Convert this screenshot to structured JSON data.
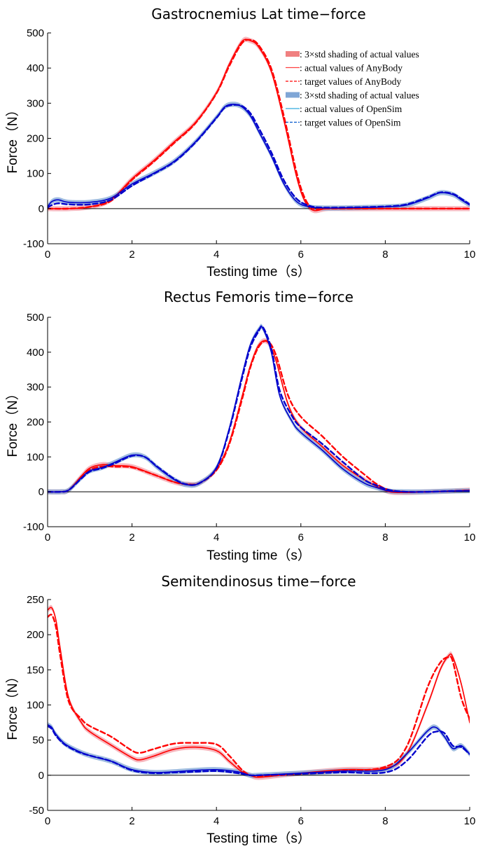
{
  "colors": {
    "anybody": "#ff0000",
    "anybody_shade": "#f4a0aa",
    "opensim": "#0000cc",
    "opensim_shade": "#7fa6d6",
    "zero_line": "#000000"
  },
  "legend": [
    {
      "label": ": 3×std shading of actual values",
      "style": "shade",
      "color": "#f08080"
    },
    {
      "label": ": actual values of AnyBody",
      "style": "solid",
      "color": "#ff4040"
    },
    {
      "label": ": target values of AnyBody",
      "style": "dashed",
      "color": "#ff0000"
    },
    {
      "label": ": 3×std shading of actual values",
      "style": "shade",
      "color": "#7fa6d6"
    },
    {
      "label": ": actual values of OpenSim",
      "style": "solid",
      "color": "#33aadd"
    },
    {
      "label": ": target values of OpenSim",
      "style": "dashed",
      "color": "#0055cc"
    }
  ],
  "chart_data": [
    {
      "type": "line",
      "title": "Gastrocnemius Lat time−force",
      "xlabel": "Testing time（s）",
      "ylabel": "Force（N）",
      "xlim": [
        0,
        10
      ],
      "ylim": [
        -100,
        500
      ],
      "xticks": [
        0,
        2,
        4,
        6,
        8,
        10
      ],
      "yticks": [
        -100,
        0,
        100,
        200,
        300,
        400,
        500
      ],
      "legend_position": "top-right",
      "grid": false,
      "series": [
        {
          "name": "actual values of AnyBody",
          "style": "solid",
          "system": "anybody",
          "x": [
            0,
            0.5,
            1,
            1.5,
            2,
            2.5,
            3,
            3.5,
            4,
            4.3,
            4.6,
            4.8,
            5,
            5.3,
            5.6,
            5.9,
            6.1,
            6.3,
            6.6,
            7,
            8,
            9,
            10
          ],
          "y": [
            0,
            0,
            5,
            25,
            85,
            135,
            190,
            245,
            330,
            410,
            475,
            478,
            460,
            390,
            250,
            90,
            20,
            -5,
            0,
            0,
            0,
            0,
            0
          ]
        },
        {
          "name": "target values of AnyBody",
          "style": "dashed",
          "system": "anybody",
          "x": [
            0,
            0.5,
            1,
            1.5,
            2,
            2.5,
            3,
            3.5,
            4,
            4.3,
            4.6,
            4.8,
            5,
            5.3,
            5.6,
            5.9,
            6.1,
            6.3,
            6.6,
            7,
            8,
            9,
            10
          ],
          "y": [
            0,
            0,
            5,
            22,
            82,
            132,
            187,
            243,
            328,
            405,
            470,
            480,
            465,
            398,
            262,
            102,
            28,
            0,
            0,
            0,
            0,
            0,
            0
          ]
        },
        {
          "name": "actual values of OpenSim",
          "style": "solid",
          "system": "opensim",
          "x": [
            0,
            0.1,
            0.25,
            0.5,
            1,
            1.5,
            2,
            2.5,
            3,
            3.5,
            4,
            4.2,
            4.4,
            4.6,
            4.8,
            5,
            5.3,
            5.6,
            5.9,
            6.2,
            6.5,
            7,
            8,
            8.5,
            9,
            9.3,
            9.6,
            9.8,
            10
          ],
          "y": [
            5,
            20,
            25,
            18,
            18,
            30,
            70,
            100,
            135,
            190,
            260,
            290,
            297,
            290,
            265,
            220,
            150,
            70,
            20,
            5,
            2,
            2,
            5,
            10,
            30,
            45,
            40,
            25,
            10
          ]
        },
        {
          "name": "target values of OpenSim",
          "style": "dashed",
          "system": "opensim",
          "x": [
            0,
            0.1,
            0.25,
            0.5,
            1,
            1.5,
            2,
            2.5,
            3,
            3.5,
            4,
            4.2,
            4.4,
            4.6,
            4.8,
            5,
            5.3,
            5.6,
            5.9,
            6.2,
            6.5,
            7,
            8,
            8.5,
            9,
            9.3,
            9.6,
            9.8,
            10
          ],
          "y": [
            3,
            10,
            15,
            12,
            12,
            25,
            65,
            98,
            133,
            188,
            258,
            288,
            295,
            292,
            272,
            230,
            160,
            80,
            28,
            8,
            3,
            3,
            6,
            12,
            32,
            46,
            42,
            28,
            12
          ]
        }
      ]
    },
    {
      "type": "line",
      "title": "Rectus Femoris time−force",
      "xlabel": "Testing time（s）",
      "ylabel": "Force（N）",
      "xlim": [
        0,
        10
      ],
      "ylim": [
        -100,
        500
      ],
      "xticks": [
        0,
        2,
        4,
        6,
        8,
        10
      ],
      "yticks": [
        -100,
        0,
        100,
        200,
        300,
        400,
        500
      ],
      "grid": false,
      "series": [
        {
          "name": "actual values of AnyBody",
          "style": "solid",
          "system": "anybody",
          "x": [
            0,
            0.3,
            0.5,
            0.8,
            1,
            1.3,
            1.6,
            2,
            2.5,
            3,
            3.3,
            3.6,
            4,
            4.3,
            4.6,
            4.8,
            5,
            5.2,
            5.4,
            5.7,
            6,
            6.5,
            7,
            7.5,
            7.8,
            8.1,
            8.5,
            9,
            9.5,
            10
          ],
          "y": [
            0,
            0,
            5,
            45,
            68,
            78,
            75,
            72,
            50,
            28,
            22,
            25,
            65,
            140,
            270,
            360,
            420,
            430,
            380,
            250,
            185,
            130,
            75,
            35,
            15,
            0,
            -2,
            0,
            2,
            5
          ]
        },
        {
          "name": "target values of AnyBody",
          "style": "dashed",
          "system": "anybody",
          "x": [
            0,
            0.3,
            0.5,
            0.8,
            1,
            1.3,
            1.6,
            2,
            2.5,
            3,
            3.3,
            3.6,
            4,
            4.3,
            4.6,
            4.8,
            5,
            5.2,
            5.4,
            5.7,
            6,
            6.5,
            7,
            7.5,
            7.8,
            8.1,
            8.5,
            9,
            9.5,
            10
          ],
          "y": [
            0,
            0,
            5,
            40,
            63,
            73,
            72,
            70,
            50,
            28,
            22,
            25,
            62,
            135,
            262,
            355,
            415,
            432,
            395,
            275,
            215,
            160,
            100,
            50,
            22,
            5,
            0,
            0,
            2,
            4
          ]
        },
        {
          "name": "actual values of OpenSim",
          "style": "solid",
          "system": "opensim",
          "x": [
            0,
            0.3,
            0.5,
            0.8,
            1,
            1.3,
            1.6,
            2,
            2.3,
            2.6,
            3,
            3.3,
            3.6,
            4,
            4.3,
            4.6,
            4.8,
            5,
            5.1,
            5.3,
            5.5,
            5.8,
            6,
            6.5,
            7,
            7.5,
            7.8,
            8.1,
            8.5,
            9,
            9.5,
            10
          ],
          "y": [
            0,
            0,
            5,
            40,
            60,
            70,
            85,
            105,
            100,
            70,
            35,
            20,
            25,
            70,
            180,
            330,
            420,
            465,
            468,
            400,
            275,
            200,
            170,
            120,
            65,
            25,
            12,
            2,
            0,
            0,
            2,
            3
          ]
        },
        {
          "name": "target values of OpenSim",
          "style": "dashed",
          "system": "opensim",
          "x": [
            0,
            0.3,
            0.5,
            0.8,
            1,
            1.3,
            1.6,
            2,
            2.3,
            2.6,
            3,
            3.3,
            3.6,
            4,
            4.3,
            4.6,
            4.8,
            5,
            5.1,
            5.3,
            5.5,
            5.8,
            6,
            6.5,
            7,
            7.5,
            7.8,
            8.1,
            8.5,
            9,
            9.5,
            10
          ],
          "y": [
            0,
            0,
            5,
            38,
            58,
            68,
            82,
            103,
            100,
            72,
            37,
            21,
            25,
            68,
            175,
            322,
            412,
            460,
            472,
            410,
            290,
            215,
            185,
            138,
            85,
            35,
            18,
            5,
            0,
            0,
            2,
            3
          ]
        }
      ]
    },
    {
      "type": "line",
      "title": "Semitendinosus time−force",
      "xlabel": "Testing time（s）",
      "ylabel": "Force（N）",
      "xlim": [
        0,
        10
      ],
      "ylim": [
        -50,
        250
      ],
      "xticks": [
        0,
        2,
        4,
        6,
        8,
        10
      ],
      "yticks": [
        -50,
        0,
        50,
        100,
        150,
        200,
        250
      ],
      "grid": false,
      "series": [
        {
          "name": "actual values of AnyBody",
          "style": "solid",
          "system": "anybody",
          "x": [
            0,
            0.1,
            0.2,
            0.3,
            0.5,
            0.8,
            1,
            1.5,
            2,
            2.2,
            2.5,
            3,
            3.5,
            4,
            4.3,
            4.6,
            4.8,
            5,
            5.5,
            6,
            7,
            8,
            8.5,
            9,
            9.3,
            9.5,
            9.6,
            9.8,
            10
          ],
          "y": [
            235,
            238,
            220,
            180,
            110,
            75,
            62,
            43,
            25,
            22,
            27,
            37,
            40,
            35,
            20,
            5,
            0,
            -3,
            0,
            3,
            8,
            10,
            30,
            100,
            150,
            170,
            168,
            130,
            75
          ]
        },
        {
          "name": "target values of AnyBody",
          "style": "dashed",
          "system": "anybody",
          "x": [
            0,
            0.1,
            0.2,
            0.3,
            0.5,
            0.8,
            1,
            1.5,
            2,
            2.2,
            2.5,
            3,
            3.5,
            4,
            4.3,
            4.6,
            4.8,
            5,
            5.5,
            6,
            7,
            8,
            8.5,
            9,
            9.3,
            9.5,
            9.6,
            9.8,
            10
          ],
          "y": [
            225,
            228,
            210,
            170,
            105,
            80,
            70,
            55,
            35,
            32,
            37,
            45,
            46,
            44,
            28,
            8,
            0,
            -1,
            0,
            2,
            6,
            12,
            40,
            125,
            160,
            168,
            162,
            110,
            80
          ]
        },
        {
          "name": "actual values of OpenSim",
          "style": "solid",
          "system": "opensim",
          "x": [
            0,
            0.1,
            0.2,
            0.4,
            0.7,
            1,
            1.5,
            2,
            2.5,
            3,
            3.5,
            4,
            4.5,
            4.8,
            5,
            6,
            7,
            8,
            8.5,
            9,
            9.2,
            9.4,
            9.6,
            9.8,
            10
          ],
          "y": [
            72,
            68,
            58,
            45,
            35,
            28,
            20,
            8,
            4,
            5,
            7,
            8,
            5,
            0,
            0,
            3,
            6,
            8,
            30,
            63,
            68,
            55,
            38,
            42,
            30
          ]
        },
        {
          "name": "target values of OpenSim",
          "style": "dashed",
          "system": "opensim",
          "x": [
            0,
            0.1,
            0.2,
            0.4,
            0.7,
            1,
            1.5,
            2,
            2.5,
            3,
            3.5,
            4,
            4.5,
            4.8,
            5,
            6,
            7,
            8,
            8.5,
            9,
            9.2,
            9.4,
            9.6,
            9.8,
            10
          ],
          "y": [
            70,
            66,
            56,
            44,
            34,
            28,
            20,
            7,
            3,
            4,
            5,
            6,
            3,
            0,
            0,
            2,
            4,
            4,
            20,
            55,
            62,
            60,
            42,
            40,
            30
          ]
        }
      ]
    }
  ]
}
